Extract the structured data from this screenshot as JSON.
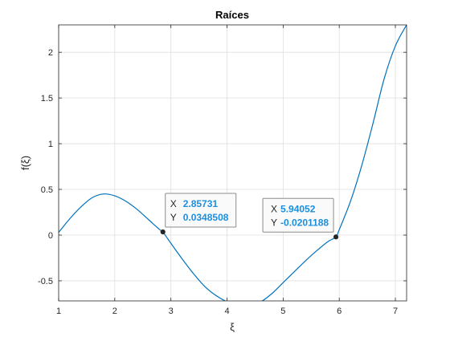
{
  "chart_data": {
    "type": "line",
    "title": "Raíces",
    "xlabel": "ξ",
    "ylabel": "f(ξ)",
    "xlim": [
      1,
      7.2
    ],
    "ylim": [
      -0.72,
      2.3
    ],
    "grid": true,
    "xticks": [
      1,
      2,
      3,
      4,
      5,
      6,
      7
    ],
    "xtick_labels": [
      "1",
      "2",
      "3",
      "4",
      "5",
      "6",
      "7"
    ],
    "yticks": [
      -0.5,
      0,
      0.5,
      1,
      1.5,
      2
    ],
    "ytick_labels": [
      "-0.5",
      "0",
      "0.5",
      "1",
      "1.5",
      "2"
    ],
    "series": [
      {
        "color": "#0072bd",
        "x": [
          1.0,
          1.2,
          1.4,
          1.6,
          1.8,
          2.0,
          2.2,
          2.4,
          2.6,
          2.8,
          2.857,
          3.0,
          3.2,
          3.4,
          3.6,
          3.8,
          4.0,
          4.2,
          4.4,
          4.6,
          4.8,
          5.0,
          5.2,
          5.4,
          5.6,
          5.8,
          5.941,
          6.0,
          6.2,
          6.4,
          6.6,
          6.8,
          7.0,
          7.2
        ],
        "y": [
          0.03,
          0.18,
          0.31,
          0.41,
          0.45,
          0.43,
          0.37,
          0.28,
          0.17,
          0.06,
          0.035,
          -0.09,
          -0.26,
          -0.42,
          -0.56,
          -0.66,
          -0.73,
          -0.77,
          -0.77,
          -0.73,
          -0.64,
          -0.52,
          -0.4,
          -0.28,
          -0.17,
          -0.07,
          -0.02,
          0.06,
          0.37,
          0.76,
          1.22,
          1.71,
          2.07,
          2.3
        ]
      }
    ],
    "datatips": [
      {
        "x": 2.85731,
        "y": 0.0348508,
        "x_key": "X",
        "y_key": "Y",
        "x_text": "2.85731",
        "y_text": "0.0348508",
        "box_side": "right"
      },
      {
        "x": 5.94052,
        "y": -0.0201188,
        "x_key": "X",
        "y_key": "Y",
        "x_text": "5.94052",
        "y_text": "-0.0201188",
        "box_side": "left"
      }
    ]
  }
}
